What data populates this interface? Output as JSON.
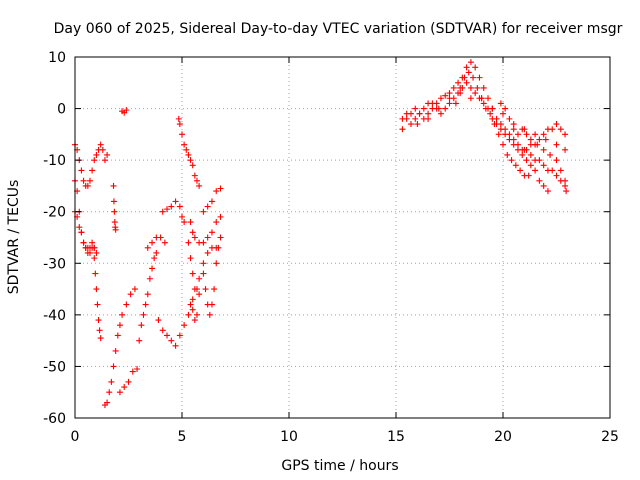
{
  "chart_data": {
    "type": "scatter",
    "title": "Day 060 of 2025, Sidereal Day-to-day VTEC variation (SDTVAR) for receiver msgr",
    "xlabel": "GPS time / hours",
    "ylabel": "SDTVAR / TECUs",
    "xlim": [
      0,
      25
    ],
    "ylim": [
      -60,
      10
    ],
    "xticks": [
      0,
      5,
      10,
      15,
      20,
      25
    ],
    "yticks": [
      -60,
      -50,
      -40,
      -30,
      -20,
      -10,
      0,
      10
    ],
    "xtick_labels": [
      "0",
      "5",
      "10",
      "15",
      "20",
      "25"
    ],
    "ytick_labels": [
      "-60",
      "-50",
      "-40",
      "-30",
      "-20",
      "-10",
      "0",
      "10"
    ],
    "grid": true,
    "marker": "+",
    "colors": {
      "series": "#ff0000",
      "axis": "#000000",
      "grid": "#a0a0a0"
    },
    "series": [
      {
        "points": [
          [
            0.0,
            -7
          ],
          [
            0.1,
            -8
          ],
          [
            0.2,
            -10
          ],
          [
            0.3,
            -12
          ],
          [
            0.4,
            -14
          ],
          [
            0.5,
            -15
          ],
          [
            0.6,
            -15
          ],
          [
            0.7,
            -14
          ],
          [
            0.8,
            -12
          ],
          [
            0.9,
            -10
          ],
          [
            1.0,
            -9
          ],
          [
            1.1,
            -8
          ],
          [
            0.0,
            -14
          ],
          [
            0.1,
            -16
          ],
          [
            0.2,
            -20
          ],
          [
            0.3,
            -24
          ],
          [
            0.4,
            -26
          ],
          [
            0.5,
            -27
          ],
          [
            0.6,
            -28
          ],
          [
            0.7,
            -28
          ],
          [
            0.8,
            -27
          ],
          [
            0.9,
            -27
          ],
          [
            1.0,
            -28
          ],
          [
            0.0,
            -20
          ],
          [
            0.1,
            -21
          ],
          [
            0.2,
            -23
          ],
          [
            0.3,
            -24
          ],
          [
            0.4,
            -26
          ],
          [
            0.5,
            -27
          ],
          [
            0.6,
            -27
          ],
          [
            0.7,
            -27
          ],
          [
            0.8,
            -26
          ],
          [
            0.9,
            -27
          ],
          [
            0.9,
            -29
          ],
          [
            0.95,
            -32
          ],
          [
            1.0,
            -35
          ],
          [
            1.05,
            -38
          ],
          [
            1.1,
            -41
          ],
          [
            1.15,
            -43
          ],
          [
            1.2,
            -44.5
          ],
          [
            1.2,
            -7
          ],
          [
            1.3,
            -8
          ],
          [
            1.4,
            -10
          ],
          [
            1.5,
            -9
          ],
          [
            1.4,
            -57.5
          ],
          [
            1.5,
            -57
          ],
          [
            1.6,
            -55
          ],
          [
            1.7,
            -53
          ],
          [
            1.8,
            -50
          ],
          [
            1.9,
            -47
          ],
          [
            2.0,
            -44
          ],
          [
            2.1,
            -42
          ],
          [
            2.2,
            -40
          ],
          [
            2.4,
            -38
          ],
          [
            2.6,
            -36
          ],
          [
            2.8,
            -35
          ],
          [
            1.8,
            -15
          ],
          [
            1.82,
            -18
          ],
          [
            1.84,
            -20
          ],
          [
            1.86,
            -22
          ],
          [
            1.88,
            -23
          ],
          [
            1.9,
            -23.5
          ],
          [
            2.2,
            -0.5
          ],
          [
            2.3,
            -0.8
          ],
          [
            2.4,
            -0.3
          ],
          [
            2.1,
            -55
          ],
          [
            2.3,
            -54
          ],
          [
            2.5,
            -53
          ],
          [
            2.7,
            -51
          ],
          [
            2.9,
            -50.5
          ],
          [
            3.0,
            -45
          ],
          [
            3.1,
            -42
          ],
          [
            3.2,
            -40
          ],
          [
            3.3,
            -38
          ],
          [
            3.4,
            -36
          ],
          [
            3.5,
            -33
          ],
          [
            3.6,
            -31
          ],
          [
            3.7,
            -29
          ],
          [
            3.8,
            -28
          ],
          [
            3.4,
            -27
          ],
          [
            3.6,
            -26
          ],
          [
            3.8,
            -25
          ],
          [
            4.0,
            -25
          ],
          [
            4.2,
            -26
          ],
          [
            3.9,
            -41
          ],
          [
            4.1,
            -43
          ],
          [
            4.3,
            -44
          ],
          [
            4.5,
            -45
          ],
          [
            4.7,
            -46
          ],
          [
            4.9,
            -44
          ],
          [
            5.1,
            -42
          ],
          [
            5.3,
            -40
          ],
          [
            5.5,
            -37
          ],
          [
            5.7,
            -35
          ],
          [
            4.1,
            -20
          ],
          [
            4.3,
            -19.5
          ],
          [
            4.5,
            -19
          ],
          [
            4.7,
            -18
          ],
          [
            4.9,
            -19
          ],
          [
            5.0,
            -21
          ],
          [
            5.1,
            -22
          ],
          [
            4.85,
            -2
          ],
          [
            4.9,
            -3
          ],
          [
            5.0,
            -5
          ],
          [
            5.1,
            -7
          ],
          [
            5.2,
            -8
          ],
          [
            5.3,
            -9
          ],
          [
            5.4,
            -10
          ],
          [
            5.5,
            -11
          ],
          [
            5.6,
            -13
          ],
          [
            5.7,
            -14
          ],
          [
            5.8,
            -15
          ],
          [
            5.4,
            -22
          ],
          [
            5.5,
            -24
          ],
          [
            5.6,
            -25
          ],
          [
            5.8,
            -26
          ],
          [
            6.0,
            -26
          ],
          [
            6.2,
            -25
          ],
          [
            6.4,
            -24
          ],
          [
            6.6,
            -22
          ],
          [
            6.8,
            -21
          ],
          [
            5.4,
            -38
          ],
          [
            5.5,
            -39
          ],
          [
            5.6,
            -41
          ],
          [
            5.7,
            -40
          ],
          [
            5.8,
            -36
          ],
          [
            5.3,
            -26
          ],
          [
            5.4,
            -29
          ],
          [
            5.5,
            -32
          ],
          [
            5.6,
            -35
          ],
          [
            5.8,
            -33
          ],
          [
            6.0,
            -30
          ],
          [
            6.2,
            -28
          ],
          [
            6.4,
            -27
          ],
          [
            6.6,
            -27
          ],
          [
            6.0,
            -32
          ],
          [
            6.1,
            -35
          ],
          [
            6.2,
            -38
          ],
          [
            6.3,
            -40
          ],
          [
            6.4,
            -38
          ],
          [
            6.5,
            -35
          ],
          [
            6.6,
            -30
          ],
          [
            6.7,
            -27
          ],
          [
            6.8,
            -25
          ],
          [
            6.0,
            -20
          ],
          [
            6.2,
            -19
          ],
          [
            6.4,
            -18
          ],
          [
            6.6,
            -16
          ],
          [
            6.8,
            -15.5
          ],
          [
            15.3,
            -4
          ],
          [
            15.5,
            -2
          ],
          [
            15.7,
            -1
          ],
          [
            15.9,
            0
          ],
          [
            16.1,
            -1
          ],
          [
            16.3,
            -2
          ],
          [
            16.5,
            -1
          ],
          [
            16.7,
            0
          ],
          [
            16.9,
            1
          ],
          [
            17.1,
            2
          ],
          [
            17.3,
            2.5
          ],
          [
            17.5,
            3
          ],
          [
            17.7,
            4
          ],
          [
            17.9,
            5
          ],
          [
            18.1,
            6
          ],
          [
            18.3,
            8
          ],
          [
            18.5,
            9
          ],
          [
            18.7,
            8
          ],
          [
            18.9,
            6
          ],
          [
            19.1,
            4
          ],
          [
            19.3,
            2
          ],
          [
            19.5,
            0
          ],
          [
            19.7,
            -2
          ],
          [
            19.9,
            -3
          ],
          [
            20.1,
            -4
          ],
          [
            20.3,
            -5
          ],
          [
            20.5,
            -6
          ],
          [
            20.7,
            -8
          ],
          [
            20.9,
            -9
          ],
          [
            21.1,
            -10
          ],
          [
            21.3,
            -11
          ],
          [
            21.5,
            -12
          ],
          [
            21.7,
            -14
          ],
          [
            21.9,
            -15
          ],
          [
            22.1,
            -16
          ],
          [
            15.3,
            -2
          ],
          [
            15.5,
            -1
          ],
          [
            15.7,
            -3
          ],
          [
            15.9,
            -2
          ],
          [
            16.1,
            -1
          ],
          [
            16.3,
            0
          ],
          [
            16.5,
            1
          ],
          [
            16.7,
            1
          ],
          [
            16.9,
            0
          ],
          [
            17.1,
            -1
          ],
          [
            17.3,
            0
          ],
          [
            17.5,
            1
          ],
          [
            17.7,
            2
          ],
          [
            17.9,
            3
          ],
          [
            18.1,
            4
          ],
          [
            18.3,
            5
          ],
          [
            18.5,
            4
          ],
          [
            18.7,
            3
          ],
          [
            18.9,
            2
          ],
          [
            19.1,
            1
          ],
          [
            19.3,
            0
          ],
          [
            19.5,
            -2
          ],
          [
            19.7,
            -3
          ],
          [
            19.9,
            -4
          ],
          [
            20.1,
            -5
          ],
          [
            20.3,
            -6
          ],
          [
            20.5,
            -7
          ],
          [
            20.7,
            -7
          ],
          [
            20.9,
            -8
          ],
          [
            21.1,
            -8
          ],
          [
            21.3,
            -9
          ],
          [
            21.5,
            -10
          ],
          [
            21.7,
            -10
          ],
          [
            21.9,
            -11
          ],
          [
            22.1,
            -12
          ],
          [
            22.3,
            -12
          ],
          [
            22.5,
            -13
          ],
          [
            22.7,
            -14
          ],
          [
            22.9,
            -15
          ],
          [
            16.0,
            -3
          ],
          [
            16.5,
            -2
          ],
          [
            17.0,
            0
          ],
          [
            17.5,
            2
          ],
          [
            18.0,
            3
          ],
          [
            18.5,
            2
          ],
          [
            19.0,
            2
          ],
          [
            19.5,
            0
          ],
          [
            20.0,
            -1
          ],
          [
            20.5,
            -3
          ],
          [
            21.0,
            -4
          ],
          [
            21.5,
            -5
          ],
          [
            22.0,
            -6
          ],
          [
            22.5,
            -7
          ],
          [
            22.9,
            -8
          ],
          [
            17.8,
            1
          ],
          [
            18.0,
            4
          ],
          [
            18.2,
            6
          ],
          [
            18.4,
            7
          ],
          [
            18.6,
            6
          ],
          [
            18.8,
            4
          ],
          [
            19.0,
            2
          ],
          [
            19.2,
            0
          ],
          [
            19.4,
            -1
          ],
          [
            19.6,
            -3
          ],
          [
            19.8,
            -5
          ],
          [
            20.0,
            -7
          ],
          [
            20.2,
            -9
          ],
          [
            20.4,
            -10
          ],
          [
            20.6,
            -11
          ],
          [
            20.8,
            -12
          ],
          [
            21.0,
            -13
          ],
          [
            21.2,
            -13
          ],
          [
            19.9,
            1
          ],
          [
            20.1,
            0
          ],
          [
            20.3,
            -2
          ],
          [
            20.5,
            -4
          ],
          [
            20.7,
            -5
          ],
          [
            20.9,
            -4
          ],
          [
            21.1,
            -5
          ],
          [
            21.3,
            -6
          ],
          [
            21.5,
            -7
          ],
          [
            21.7,
            -6
          ],
          [
            21.9,
            -5
          ],
          [
            22.1,
            -4
          ],
          [
            22.3,
            -4
          ],
          [
            22.5,
            -3
          ],
          [
            22.7,
            -4
          ],
          [
            22.9,
            -5
          ],
          [
            21.0,
            -8
          ],
          [
            21.3,
            -7
          ],
          [
            21.6,
            -7
          ],
          [
            21.9,
            -8
          ],
          [
            22.2,
            -9
          ],
          [
            22.5,
            -10
          ],
          [
            22.7,
            -12
          ],
          [
            22.9,
            -14
          ],
          [
            22.95,
            -16
          ]
        ]
      }
    ]
  }
}
